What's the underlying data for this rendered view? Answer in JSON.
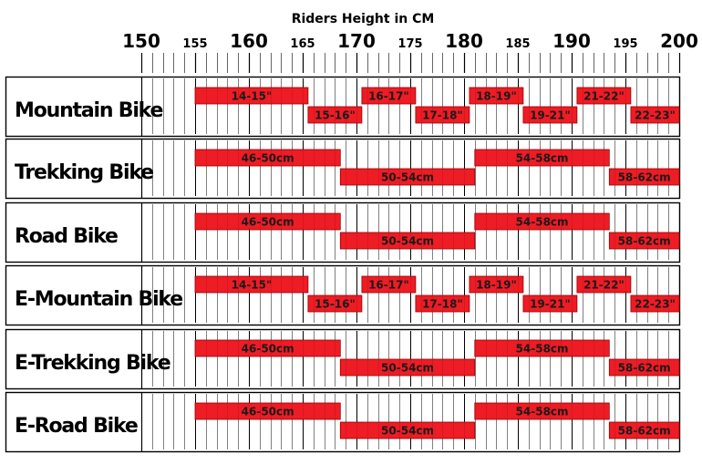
{
  "chart_data": {
    "type": "bar",
    "title": "Riders Height in CM",
    "x_axis": {
      "range": [
        150,
        200
      ],
      "major_ticks": [
        {
          "value": 150,
          "label": "150"
        },
        {
          "value": 160,
          "label": "160"
        },
        {
          "value": 170,
          "label": "170"
        },
        {
          "value": 180,
          "label": "180"
        },
        {
          "value": 190,
          "label": "190"
        },
        {
          "value": 200,
          "label": "200"
        }
      ],
      "minor_ticks": [
        {
          "value": 155,
          "label": "155"
        },
        {
          "value": 165,
          "label": "165"
        },
        {
          "value": 175,
          "label": "175"
        },
        {
          "value": 185,
          "label": "185"
        },
        {
          "value": 195,
          "label": "195"
        }
      ],
      "grid_step": 1
    },
    "colors": {
      "bar": "#ee1c25",
      "bar_stroke": "#9a0000",
      "grid": "#000000",
      "text": "#000000"
    },
    "rows": [
      {
        "category": "Mountain Bike",
        "bars": [
          {
            "label": "14-15\"",
            "start": 155,
            "end": 165.5,
            "lane": "top"
          },
          {
            "label": "15-16\"",
            "start": 165.5,
            "end": 170.5,
            "lane": "bottom"
          },
          {
            "label": "16-17\"",
            "start": 170.5,
            "end": 175.5,
            "lane": "top"
          },
          {
            "label": "17-18\"",
            "start": 175.5,
            "end": 180.5,
            "lane": "bottom"
          },
          {
            "label": "18-19\"",
            "start": 180.5,
            "end": 185.5,
            "lane": "top"
          },
          {
            "label": "19-21\"",
            "start": 185.5,
            "end": 190.5,
            "lane": "bottom"
          },
          {
            "label": "21-22\"",
            "start": 190.5,
            "end": 195.5,
            "lane": "top"
          },
          {
            "label": "22-23\"",
            "start": 195.5,
            "end": 200.5,
            "lane": "bottom"
          }
        ]
      },
      {
        "category": "Trekking Bike",
        "bars": [
          {
            "label": "46-50cm",
            "start": 155,
            "end": 168.5,
            "lane": "top"
          },
          {
            "label": "50-54cm",
            "start": 168.5,
            "end": 181,
            "lane": "bottom"
          },
          {
            "label": "54-58cm",
            "start": 181,
            "end": 193.5,
            "lane": "top"
          },
          {
            "label": "58-62cm",
            "start": 193.5,
            "end": 200.5,
            "lane": "bottom"
          }
        ]
      },
      {
        "category": "Road Bike",
        "bars": [
          {
            "label": "46-50cm",
            "start": 155,
            "end": 168.5,
            "lane": "top"
          },
          {
            "label": "50-54cm",
            "start": 168.5,
            "end": 181,
            "lane": "bottom"
          },
          {
            "label": "54-58cm",
            "start": 181,
            "end": 193.5,
            "lane": "top"
          },
          {
            "label": "58-62cm",
            "start": 193.5,
            "end": 200.5,
            "lane": "bottom"
          }
        ]
      },
      {
        "category": "E-Mountain Bike",
        "bars": [
          {
            "label": "14-15\"",
            "start": 155,
            "end": 165.5,
            "lane": "top"
          },
          {
            "label": "15-16\"",
            "start": 165.5,
            "end": 170.5,
            "lane": "bottom"
          },
          {
            "label": "16-17\"",
            "start": 170.5,
            "end": 175.5,
            "lane": "top"
          },
          {
            "label": "17-18\"",
            "start": 175.5,
            "end": 180.5,
            "lane": "bottom"
          },
          {
            "label": "18-19\"",
            "start": 180.5,
            "end": 185.5,
            "lane": "top"
          },
          {
            "label": "19-21\"",
            "start": 185.5,
            "end": 190.5,
            "lane": "bottom"
          },
          {
            "label": "21-22\"",
            "start": 190.5,
            "end": 195.5,
            "lane": "top"
          },
          {
            "label": "22-23\"",
            "start": 195.5,
            "end": 200.5,
            "lane": "bottom"
          }
        ]
      },
      {
        "category": "E-Trekking Bike",
        "bars": [
          {
            "label": "46-50cm",
            "start": 155,
            "end": 168.5,
            "lane": "top"
          },
          {
            "label": "50-54cm",
            "start": 168.5,
            "end": 181,
            "lane": "bottom"
          },
          {
            "label": "54-58cm",
            "start": 181,
            "end": 193.5,
            "lane": "top"
          },
          {
            "label": "58-62cm",
            "start": 193.5,
            "end": 200.5,
            "lane": "bottom"
          }
        ]
      },
      {
        "category": "E-Road Bike",
        "bars": [
          {
            "label": "46-50cm",
            "start": 155,
            "end": 168.5,
            "lane": "top"
          },
          {
            "label": "50-54cm",
            "start": 168.5,
            "end": 181,
            "lane": "bottom"
          },
          {
            "label": "54-58cm",
            "start": 181,
            "end": 193.5,
            "lane": "top"
          },
          {
            "label": "58-62cm",
            "start": 193.5,
            "end": 200.5,
            "lane": "bottom"
          }
        ]
      }
    ]
  }
}
